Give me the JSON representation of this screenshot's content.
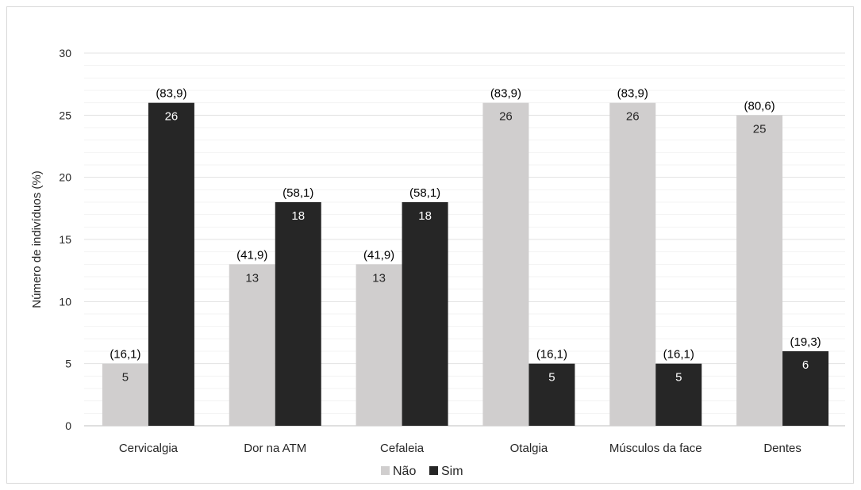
{
  "chart_data": {
    "type": "bar",
    "title": "",
    "xlabel": "",
    "ylabel": "Número de indivíduos (%)",
    "ylim": [
      0,
      30
    ],
    "yticks": [
      0,
      5,
      10,
      15,
      20,
      25,
      30
    ],
    "categories": [
      "Cervicalgia",
      "Dor na ATM",
      "Cefaleia",
      "Otalgia",
      "Músculos da face",
      "Dentes"
    ],
    "series": [
      {
        "name": "Não",
        "color": "#d0cece",
        "label_color": "#262626",
        "values": [
          5,
          13,
          13,
          26,
          26,
          25
        ],
        "percent_labels": [
          "(16,1)",
          "(41,9)",
          "(41,9)",
          "(83,9)",
          "(83,9)",
          "(80,6)"
        ]
      },
      {
        "name": "Sim",
        "color": "#262626",
        "label_color": "#ffffff",
        "values": [
          26,
          18,
          18,
          5,
          5,
          6
        ],
        "percent_labels": [
          "(83,9)",
          "(58,1)",
          "(58,1)",
          "(16,1)",
          "(16,1)",
          "(19,3)"
        ]
      }
    ],
    "grid": true,
    "legend": "bottom-center"
  }
}
